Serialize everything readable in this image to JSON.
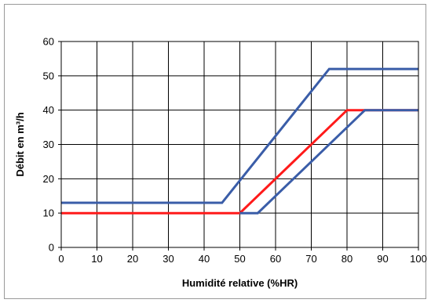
{
  "chart_data": {
    "type": "line",
    "title": "",
    "xlabel": "Humidité relative  (%HR)",
    "ylabel": "Débit  en  m³/h",
    "xlim": [
      0,
      100
    ],
    "ylim": [
      0,
      60
    ],
    "xticks": [
      0,
      10,
      20,
      30,
      40,
      50,
      60,
      70,
      80,
      90,
      100
    ],
    "yticks": [
      0,
      10,
      20,
      30,
      40,
      50,
      60
    ],
    "grid": true,
    "legend": "none",
    "series": [
      {
        "color": "#3a5da8",
        "points": [
          [
            0,
            13
          ],
          [
            45,
            13
          ],
          [
            75,
            52
          ],
          [
            100,
            52
          ]
        ]
      },
      {
        "color": "#ff1a1a",
        "points": [
          [
            0,
            10
          ],
          [
            50,
            10
          ],
          [
            80,
            40
          ],
          [
            100,
            40
          ]
        ]
      },
      {
        "color": "#3a5da8",
        "points": [
          [
            50,
            10
          ],
          [
            55,
            10
          ],
          [
            85,
            40
          ],
          [
            100,
            40
          ]
        ]
      }
    ]
  }
}
